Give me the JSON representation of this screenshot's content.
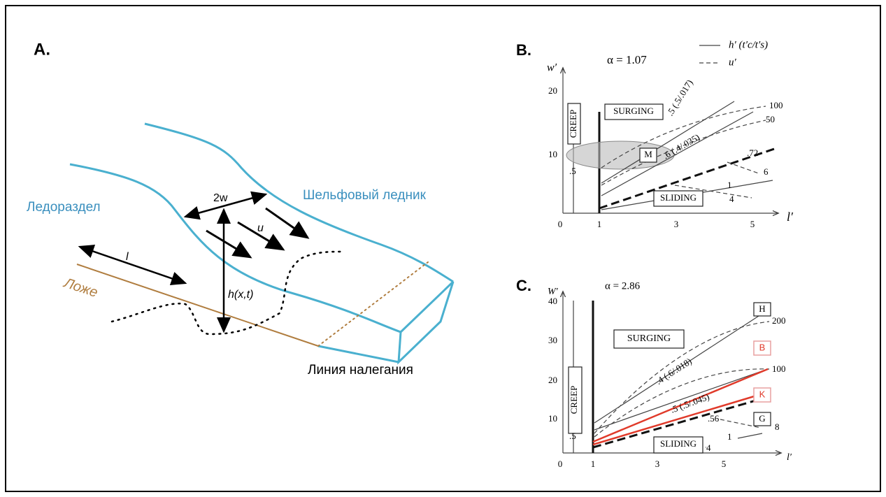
{
  "panel_a": {
    "label": "A.",
    "labels": {
      "divide": "Ледораздел",
      "shelf": "Шельфовый ледник",
      "bed": "Ложе",
      "grounding_line": "Линия налегания",
      "width": "2w",
      "length": "l",
      "velocity": "u",
      "thickness": "h(x,t)"
    }
  },
  "panel_b": {
    "label": "B.",
    "alpha": "α = 1.07",
    "y_axis": "w′",
    "x_axis": "l′",
    "legend": [
      "h′ (t′c/t′s)",
      "u′"
    ],
    "regions": {
      "creep": "CREEP",
      "surging": "SURGING",
      "sliding": "SLIDING",
      "glacier": "M"
    },
    "curve_labels": [
      ".5 (.5/.017)",
      ".6 (.4/.035)",
      ".72",
      "100",
      "50",
      "6",
      "1",
      "4",
      ".5"
    ],
    "xticks": [
      "0",
      "1",
      "3",
      "5"
    ],
    "yticks": [
      "10",
      "20"
    ]
  },
  "panel_c": {
    "label": "C.",
    "alpha": "α = 2.86",
    "y_axis": "W′",
    "x_axis": "l′",
    "regions": {
      "creep": "CREEP",
      "surging": "SURGING",
      "sliding": "SLIDING"
    },
    "glaciers": [
      "H",
      "B",
      "K",
      "G"
    ],
    "curve_labels": [
      ".4 (.6/.018)",
      ".5 (.5/.045)",
      ".56",
      "200",
      "100",
      "8",
      "1",
      "4",
      ".5"
    ],
    "xticks": [
      "0",
      "1",
      "3",
      "5"
    ],
    "yticks": [
      "10",
      "20",
      "30",
      "40"
    ]
  }
}
